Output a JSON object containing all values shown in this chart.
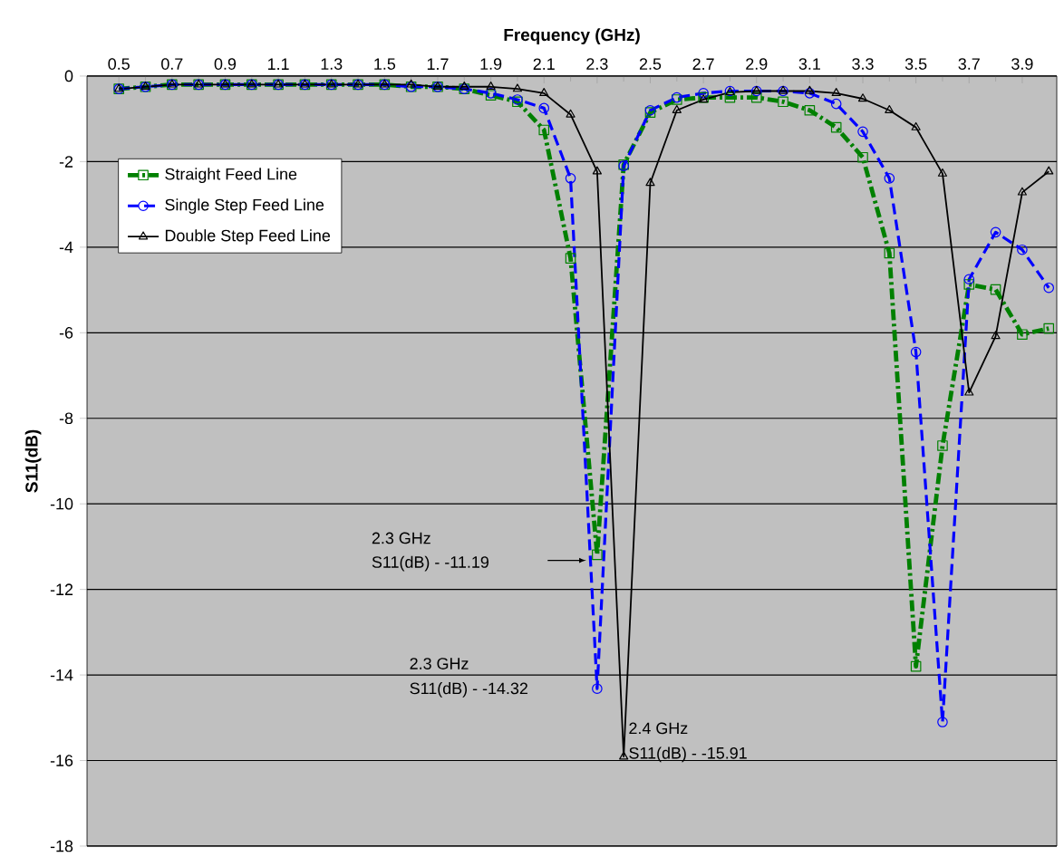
{
  "chart_data": {
    "type": "line",
    "xlabel": "Frequency (GHz)",
    "ylabel": "S11(dB)",
    "x": [
      0.5,
      0.6,
      0.7,
      0.8,
      0.9,
      1.0,
      1.1,
      1.2,
      1.3,
      1.4,
      1.5,
      1.6,
      1.7,
      1.8,
      1.9,
      2.0,
      2.1,
      2.2,
      2.3,
      2.4,
      2.5,
      2.6,
      2.7,
      2.8,
      2.9,
      3.0,
      3.1,
      3.2,
      3.3,
      3.4,
      3.5,
      3.6,
      3.7,
      3.8,
      3.9,
      4.0
    ],
    "xlim": [
      0.38,
      4.03
    ],
    "xticks": [
      0.5,
      0.7,
      0.9,
      1.1,
      1.3,
      1.5,
      1.7,
      1.9,
      2.1,
      2.3,
      2.5,
      2.7,
      2.9,
      3.1,
      3.3,
      3.5,
      3.7,
      3.9
    ],
    "ylim": [
      -18,
      0
    ],
    "yticks": [
      -18,
      -16,
      -14,
      -12,
      -10,
      -8,
      -6,
      -4,
      -2,
      0
    ],
    "grid": "y",
    "legend": "top left",
    "series": [
      {
        "name": "Straight Feed Line",
        "color": "#008000",
        "marker": "square",
        "line_style": "dashdot",
        "values": [
          -0.3,
          -0.25,
          -0.2,
          -0.2,
          -0.2,
          -0.2,
          -0.2,
          -0.2,
          -0.2,
          -0.2,
          -0.2,
          -0.25,
          -0.25,
          -0.3,
          -0.45,
          -0.6,
          -1.26,
          -4.26,
          -11.19,
          -2.07,
          -0.85,
          -0.55,
          -0.5,
          -0.5,
          -0.5,
          -0.6,
          -0.8,
          -1.2,
          -1.9,
          -4.14,
          -13.8,
          -8.64,
          -4.87,
          -4.99,
          -6.04,
          -5.9
        ]
      },
      {
        "name": "Single Step Feed Line",
        "color": "#0000ff",
        "marker": "circle",
        "line_style": "dashed",
        "values": [
          -0.3,
          -0.25,
          -0.2,
          -0.2,
          -0.2,
          -0.2,
          -0.2,
          -0.2,
          -0.2,
          -0.2,
          -0.2,
          -0.25,
          -0.25,
          -0.3,
          -0.4,
          -0.55,
          -0.75,
          -2.39,
          -14.32,
          -2.1,
          -0.8,
          -0.5,
          -0.4,
          -0.35,
          -0.35,
          -0.35,
          -0.4,
          -0.65,
          -1.3,
          -2.39,
          -6.45,
          -15.1,
          -4.75,
          -3.65,
          -4.06,
          -4.95
        ]
      },
      {
        "name": "Double Step Feed Line",
        "color": "#000000",
        "marker": "triangle",
        "line_style": "solid",
        "values": [
          -0.3,
          -0.25,
          -0.2,
          -0.2,
          -0.2,
          -0.2,
          -0.2,
          -0.2,
          -0.2,
          -0.2,
          -0.2,
          -0.2,
          -0.25,
          -0.25,
          -0.25,
          -0.3,
          -0.4,
          -0.9,
          -2.23,
          -15.91,
          -2.5,
          -0.8,
          -0.55,
          -0.38,
          -0.35,
          -0.35,
          -0.35,
          -0.4,
          -0.53,
          -0.8,
          -1.2,
          -2.28,
          -7.4,
          -6.08,
          -2.72,
          -2.23
        ]
      }
    ],
    "annotations": [
      "2.3 GHz",
      "S11(dB) - -11.19",
      "2.3 GHz",
      "S11(dB) - -14.32",
      "2.4 GHz",
      "S11(dB) - -15.91"
    ]
  }
}
